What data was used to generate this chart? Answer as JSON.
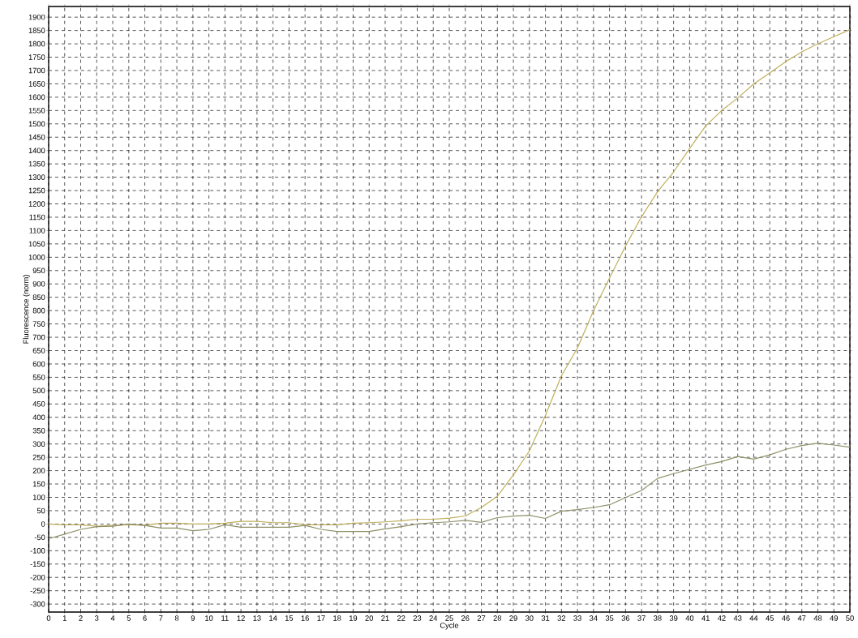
{
  "chart_data": {
    "type": "line",
    "xlabel": "Cycle",
    "ylabel": "Fluorescence (norm)",
    "x": [
      0,
      1,
      2,
      3,
      4,
      5,
      6,
      7,
      8,
      9,
      10,
      11,
      12,
      13,
      14,
      15,
      16,
      17,
      18,
      19,
      20,
      21,
      22,
      23,
      24,
      25,
      26,
      27,
      28,
      29,
      30,
      31,
      32,
      33,
      34,
      35,
      36,
      37,
      38,
      39,
      40,
      41,
      42,
      43,
      44,
      45,
      46,
      47,
      48,
      49,
      50
    ],
    "series": [
      {
        "color": "#bfae5a",
        "values": [
          0,
          -3,
          -3,
          -8,
          -5,
          -2,
          -5,
          3,
          3,
          0,
          0,
          3,
          10,
          10,
          5,
          5,
          -3,
          -3,
          -3,
          3,
          5,
          8,
          12,
          18,
          18,
          22,
          30,
          62,
          104,
          184,
          274,
          407,
          556,
          660,
          800,
          922,
          1042,
          1152,
          1246,
          1320,
          1408,
          1492,
          1550,
          1597,
          1650,
          1691,
          1733,
          1770,
          1800,
          1827,
          1853
        ]
      },
      {
        "color": "#8f9068",
        "values": [
          -55,
          -38,
          -20,
          -10,
          -8,
          0,
          -5,
          -15,
          -15,
          -25,
          -20,
          -3,
          -12,
          -12,
          -12,
          -12,
          -5,
          -20,
          -28,
          -28,
          -28,
          -18,
          -10,
          0,
          5,
          8,
          14,
          6,
          24,
          30,
          33,
          21,
          48,
          54,
          62,
          72,
          99,
          126,
          171,
          189,
          205,
          221,
          234,
          253,
          243,
          259,
          280,
          294,
          303,
          296,
          288
        ]
      }
    ],
    "xlim": [
      0,
      50
    ],
    "ylim": [
      -330,
      1940
    ],
    "xticks": [
      0,
      1,
      2,
      3,
      4,
      5,
      6,
      7,
      8,
      9,
      10,
      11,
      12,
      13,
      14,
      15,
      16,
      17,
      18,
      19,
      20,
      21,
      22,
      23,
      24,
      25,
      26,
      27,
      28,
      29,
      30,
      31,
      32,
      33,
      34,
      35,
      36,
      37,
      38,
      39,
      40,
      41,
      42,
      43,
      44,
      45,
      46,
      47,
      48,
      49,
      50
    ],
    "yticks": [
      -300,
      -250,
      -200,
      -150,
      -100,
      -50,
      0,
      50,
      100,
      150,
      200,
      250,
      300,
      350,
      400,
      450,
      500,
      550,
      600,
      650,
      700,
      750,
      800,
      850,
      900,
      950,
      1000,
      1050,
      1100,
      1150,
      1200,
      1250,
      1300,
      1350,
      1400,
      1450,
      1500,
      1550,
      1600,
      1650,
      1700,
      1750,
      1800,
      1850,
      1900
    ],
    "grid": true,
    "marker": "none",
    "line_style": "solid"
  }
}
